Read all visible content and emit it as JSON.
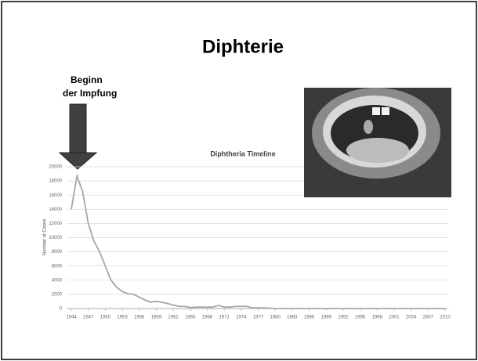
{
  "slide": {
    "title": "Diphterie",
    "annotation": [
      "Beginn",
      "der Impfung"
    ]
  },
  "chart_data": {
    "type": "line",
    "title": "Diphtheria Timeline",
    "y_label": "Number of Cases",
    "x": [
      1944,
      1945,
      1946,
      1947,
      1948,
      1949,
      1950,
      1951,
      1952,
      1953,
      1954,
      1955,
      1956,
      1957,
      1958,
      1959,
      1960,
      1961,
      1962,
      1963,
      1964,
      1965,
      1966,
      1967,
      1968,
      1969,
      1970,
      1971,
      1972,
      1973,
      1974,
      1975,
      1976,
      1977,
      1978,
      1979,
      1980,
      1981,
      1982,
      1983,
      1984,
      1985,
      1986,
      1987,
      1988,
      1989,
      1990,
      1991,
      1992,
      1993,
      1994,
      1995,
      1996,
      1997,
      1998,
      1999,
      2000,
      2001,
      2002,
      2003,
      2004,
      2005,
      2006,
      2007,
      2008,
      2009,
      2010
    ],
    "values": [
      14000,
      18700,
      16500,
      12000,
      9500,
      8000,
      6000,
      4000,
      3000,
      2400,
      2100,
      2000,
      1600,
      1200,
      900,
      1000,
      900,
      700,
      500,
      300,
      300,
      150,
      200,
      200,
      200,
      200,
      450,
      200,
      200,
      300,
      300,
      300,
      100,
      100,
      100,
      50,
      0,
      0,
      0,
      0,
      0,
      0,
      0,
      0,
      0,
      0,
      0,
      0,
      0,
      0,
      0,
      0,
      0,
      0,
      0,
      0,
      0,
      0,
      0,
      0,
      0,
      0,
      0,
      0,
      0,
      0,
      0
    ],
    "color": "#a6a6a6",
    "xlim": [
      1944,
      2010
    ],
    "xticks": [
      1944,
      1947,
      1950,
      1953,
      1956,
      1959,
      1962,
      1965,
      1968,
      1971,
      1974,
      1977,
      1980,
      1983,
      1986,
      1989,
      1992,
      1995,
      1998,
      2001,
      2004,
      2007,
      2010
    ],
    "ylim": [
      0,
      20000
    ],
    "yticks": [
      0,
      2000,
      4000,
      6000,
      8000,
      10000,
      12000,
      14000,
      16000,
      18000,
      20000
    ],
    "grid": true
  }
}
